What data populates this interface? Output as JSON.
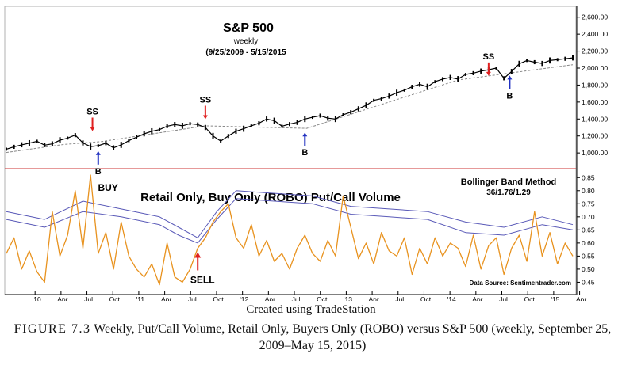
{
  "chart_data": [
    {
      "type": "line",
      "title": "S&P 500",
      "subtitle": "weekly",
      "date_range": "(9/25/2009 - 5/15/2015",
      "x_ticks": [
        "'10",
        "Apr",
        "Jul",
        "Oct",
        "'11",
        "Apr",
        "Jul",
        "Oct",
        "'12",
        "Apr",
        "Jul",
        "Oct",
        "'13",
        "Apr",
        "Jul",
        "Oct",
        "'14",
        "Apr",
        "Jul",
        "Oct",
        "'15",
        "Apr"
      ],
      "y_ticks": [
        "1,000.00",
        "1,200.00",
        "1,400.00",
        "1,600.00",
        "1,800.00",
        "2,000.00",
        "2,200.00",
        "2,400.00",
        "2,600.00"
      ],
      "ylim": [
        880,
        2700
      ],
      "series": [
        {
          "name": "S&P 500 weekly close",
          "x": [
            0,
            4,
            8,
            12,
            16,
            20,
            24,
            28,
            32,
            36,
            40,
            44,
            48,
            52,
            56,
            60,
            64,
            68,
            72,
            76,
            80,
            84,
            88,
            92,
            96,
            100,
            104,
            108,
            112,
            116,
            120,
            124,
            128,
            132,
            136,
            140,
            144,
            148,
            152,
            156,
            160,
            164,
            168,
            172,
            176,
            180,
            184,
            188,
            192,
            196,
            200,
            204,
            208,
            212,
            216,
            220,
            224,
            228,
            232,
            236,
            240,
            244,
            248,
            252,
            256,
            260,
            264,
            268,
            272,
            276,
            280,
            284,
            288,
            292,
            296
          ],
          "values": [
            1044,
            1072,
            1096,
            1115,
            1138,
            1092,
            1107,
            1150,
            1175,
            1210,
            1118,
            1075,
            1085,
            1115,
            1060,
            1095,
            1145,
            1185,
            1225,
            1255,
            1275,
            1315,
            1335,
            1320,
            1345,
            1335,
            1300,
            1200,
            1140,
            1200,
            1255,
            1285,
            1320,
            1350,
            1400,
            1380,
            1315,
            1340,
            1360,
            1400,
            1420,
            1440,
            1410,
            1400,
            1450,
            1480,
            1520,
            1560,
            1620,
            1640,
            1670,
            1710,
            1740,
            1780,
            1810,
            1780,
            1840,
            1870,
            1890,
            1870,
            1925,
            1940,
            1965,
            1980,
            2000,
            1880,
            1960,
            2050,
            2090,
            2070,
            2055,
            2090,
            2100,
            2110,
            2120
          ]
        },
        {
          "name": "Support trendline",
          "x": [
            0,
            30,
            50,
            104,
            157,
            236,
            296
          ],
          "values": [
            1005,
            1100,
            1135,
            1320,
            1290,
            1860,
            2040
          ]
        }
      ],
      "annotations": [
        {
          "label": "SS",
          "x": 45,
          "value": 1230
        },
        {
          "label": "B",
          "x": 48,
          "value": 1050
        },
        {
          "label": "SS",
          "x": 104,
          "value": 1370
        },
        {
          "label": "B",
          "x": 156,
          "value": 1270
        },
        {
          "label": "SS",
          "x": 252,
          "value": 1880
        },
        {
          "label": "B",
          "x": 263,
          "value": 1940
        }
      ]
    },
    {
      "type": "line",
      "title": "Retail Only, Buy Only (ROBO) Put/Call Volume",
      "method_label": "Bollinger Band Method",
      "method_params": "36/1.76/1.29",
      "source": "Data Source: Sentimentrader.com",
      "y_ticks": [
        "0.85",
        "0.80",
        "0.75",
        "0.70",
        "0.65",
        "0.60",
        "0.55",
        "0.50",
        "0.45"
      ],
      "ylim": [
        0.415,
        0.875
      ],
      "series": [
        {
          "name": "ROBO Put/Call ratio",
          "x": [
            0,
            4,
            8,
            12,
            16,
            20,
            24,
            28,
            32,
            36,
            40,
            44,
            48,
            52,
            56,
            60,
            64,
            68,
            72,
            76,
            80,
            84,
            88,
            92,
            96,
            100,
            104,
            108,
            112,
            116,
            120,
            124,
            128,
            132,
            136,
            140,
            144,
            148,
            152,
            156,
            160,
            164,
            168,
            172,
            176,
            180,
            184,
            188,
            192,
            196,
            200,
            204,
            208,
            212,
            216,
            220,
            224,
            228,
            232,
            236,
            240,
            244,
            248,
            252,
            256,
            260,
            264,
            268,
            272,
            276,
            280,
            284,
            288,
            292,
            296
          ],
          "values": [
            0.56,
            0.62,
            0.5,
            0.57,
            0.49,
            0.45,
            0.72,
            0.55,
            0.63,
            0.8,
            0.58,
            0.86,
            0.56,
            0.64,
            0.5,
            0.68,
            0.55,
            0.5,
            0.47,
            0.52,
            0.44,
            0.6,
            0.47,
            0.45,
            0.5,
            0.58,
            0.62,
            0.68,
            0.72,
            0.75,
            0.62,
            0.58,
            0.67,
            0.55,
            0.61,
            0.53,
            0.56,
            0.5,
            0.58,
            0.63,
            0.56,
            0.53,
            0.61,
            0.55,
            0.78,
            0.66,
            0.54,
            0.6,
            0.52,
            0.64,
            0.57,
            0.55,
            0.62,
            0.48,
            0.58,
            0.52,
            0.62,
            0.55,
            0.6,
            0.58,
            0.51,
            0.63,
            0.5,
            0.59,
            0.62,
            0.48,
            0.58,
            0.63,
            0.53,
            0.72,
            0.55,
            0.64,
            0.52,
            0.6,
            0.55
          ]
        },
        {
          "name": "Upper band",
          "x": [
            0,
            20,
            40,
            60,
            80,
            90,
            100,
            110,
            120,
            140,
            160,
            180,
            200,
            220,
            240,
            260,
            280,
            296
          ],
          "values": [
            0.72,
            0.69,
            0.76,
            0.73,
            0.7,
            0.66,
            0.62,
            0.72,
            0.8,
            0.79,
            0.78,
            0.74,
            0.73,
            0.72,
            0.68,
            0.66,
            0.7,
            0.67
          ]
        },
        {
          "name": "Lower band",
          "x": [
            0,
            20,
            40,
            60,
            80,
            90,
            100,
            110,
            120,
            140,
            160,
            180,
            200,
            220,
            240,
            260,
            280,
            296
          ],
          "values": [
            0.69,
            0.66,
            0.72,
            0.7,
            0.67,
            0.63,
            0.6,
            0.69,
            0.77,
            0.76,
            0.75,
            0.71,
            0.7,
            0.69,
            0.64,
            0.63,
            0.67,
            0.65
          ]
        }
      ],
      "annotations": [
        {
          "label": "BUY",
          "x": 44,
          "value": 0.86
        },
        {
          "label": "SELL",
          "x": 100,
          "value": 0.58
        }
      ]
    }
  ],
  "captions": {
    "credit": "Created using TradeStation",
    "figure_label": "FIGURE 7.3",
    "figure_text": "Weekly, Put/Call Volume, Retail Only, Buyers Only (ROBO) versus S&P 500 (weekly, September 25, 2009–May 15, 2015)"
  },
  "colors": {
    "price_bars": "#000000",
    "trendline": "#888888",
    "ratio_line": "#e8921e",
    "upper_band": "#5a5ab8",
    "lower_band": "#5a5ab8",
    "sell_arrow": "#e02020",
    "buy_arrow": "#2030c0",
    "divider": "#cc3333"
  }
}
